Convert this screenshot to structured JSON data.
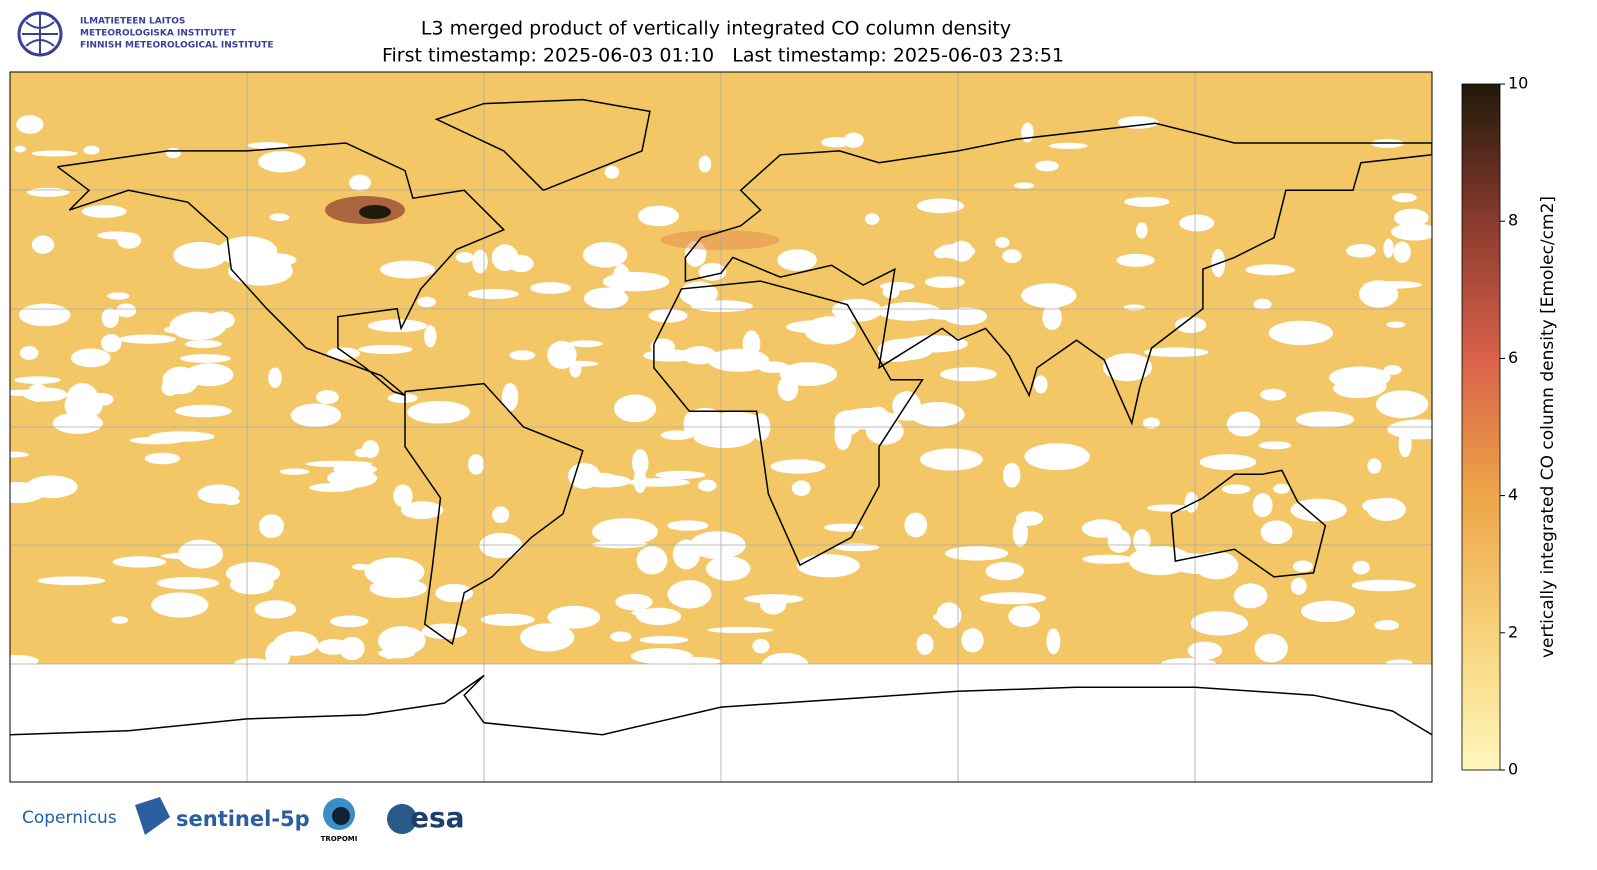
{
  "header": {
    "title": "L3 merged product of vertically integrated CO column density",
    "subtitle": "First timestamp: 2025-06-03 01:10   Last timestamp: 2025-06-03 23:51"
  },
  "institute": [
    "ILMATIETEEN LAITOS",
    "METEOROLOGISKA INSTITUTET",
    "FINNISH METEOROLOGICAL INSTITUTE"
  ],
  "colorbar": {
    "label": "vertically integrated CO column density [Emolec/cm2]",
    "lim": [
      0,
      10
    ],
    "ticks": [
      0,
      2,
      4,
      6,
      8,
      10
    ]
  },
  "logos": [
    "Copernicus",
    "sentinel-5p",
    "TROPOMI",
    "esa"
  ]
}
